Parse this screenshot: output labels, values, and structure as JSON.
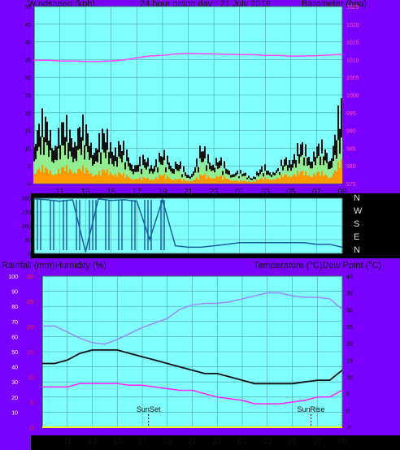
{
  "header": {
    "left_label": "Windspeed (kph)",
    "center_label": "24 hour graph day : 21 July 2019",
    "right_label": "Barometer (hpa)"
  },
  "middle": {
    "compass": [
      "N",
      "W",
      "S",
      "E",
      "N"
    ]
  },
  "lower_header": {
    "left_label": "Rainfall (mm)",
    "humidity_label": "Humidity (%)",
    "right_label": "Temperature (°C)Dew Point (°C)"
  },
  "annotations": {
    "sunset": "SunSet",
    "sunrise": "SunRise"
  },
  "colors": {
    "frame": "#7a00ff",
    "plot_bg": "#80ffff",
    "wind_gust": "#111111",
    "wind_avg": "#90ee90",
    "wind_low": "#ff9900",
    "pressure": "#ff44ff",
    "direction": "#1a5fa0",
    "humidity": "#9b8aff",
    "temperature": "#111111",
    "dew_point": "#ff22ff",
    "rain": "#ffff00"
  },
  "chart_data": [
    {
      "type": "line",
      "title": "24 hour graph day : 21 July 2019",
      "xlabel": "",
      "ylabel": "Windspeed (kph)",
      "y2label": "Barometer (hpa)",
      "x_ticks": [
        "11",
        "13",
        "15",
        "17",
        "19",
        "21",
        "23",
        "01",
        "03",
        "05",
        "07",
        "09"
      ],
      "ylim": [
        0,
        50
      ],
      "y_ticks": [
        0,
        5,
        10,
        15,
        20,
        25,
        30,
        35,
        40,
        45,
        50
      ],
      "y2lim": [
        975,
        1025
      ],
      "y2_ticks": [
        975,
        980,
        985,
        990,
        995,
        1000,
        1005,
        1010,
        1015,
        1020,
        1025
      ],
      "x_hours": [
        9,
        10,
        11,
        12,
        13,
        14,
        15,
        16,
        17,
        18,
        19,
        20,
        21,
        22,
        23,
        24,
        25,
        26,
        27,
        28,
        29,
        30,
        31,
        32,
        33
      ],
      "series": [
        {
          "name": "Windspeed (kph)",
          "values": [
            23,
            21,
            19,
            22,
            19,
            16,
            18,
            12,
            8,
            9,
            10,
            9,
            3,
            12,
            10,
            6,
            4,
            3,
            6,
            5,
            12,
            13,
            13,
            12,
            28
          ]
        },
        {
          "name": "Avg",
          "values": [
            14,
            13,
            12,
            13,
            12,
            10,
            11,
            8,
            5,
            6,
            7,
            6,
            2,
            8,
            7,
            4,
            3,
            2,
            4,
            4,
            8,
            9,
            9,
            8,
            15
          ]
        },
        {
          "name": "Low",
          "values": [
            6,
            5,
            5,
            6,
            5,
            4,
            5,
            3,
            2,
            2,
            3,
            2,
            1,
            3,
            3,
            2,
            1,
            1,
            2,
            2,
            4,
            4,
            4,
            3,
            8
          ]
        },
        {
          "name": "Barometer (hpa)",
          "values": [
            1009.8,
            1009.8,
            1009.6,
            1009.6,
            1009.5,
            1009.5,
            1009.6,
            1009.9,
            1010.5,
            1011.0,
            1011.2,
            1011.6,
            1011.8,
            1011.7,
            1011.6,
            1011.5,
            1011.4,
            1011.4,
            1011.2,
            1011.2,
            1011.0,
            1011.0,
            1011.1,
            1011.3,
            1011.5
          ]
        }
      ]
    },
    {
      "type": "line",
      "title": "",
      "y_ticks": [
        0,
        90,
        180,
        270,
        360
      ],
      "ylim": [
        0,
        360
      ],
      "x_hours": [
        9,
        10,
        11,
        12,
        13,
        14,
        15,
        16,
        17,
        18,
        19,
        20,
        21,
        22,
        23,
        24,
        25,
        26,
        27,
        28,
        29,
        30,
        31,
        32,
        33
      ],
      "series": [
        {
          "name": "Direction",
          "values": [
            355,
            350,
            340,
            350,
            10,
            355,
            345,
            350,
            340,
            90,
            350,
            50,
            40,
            40,
            50,
            60,
            70,
            70,
            70,
            70,
            70,
            70,
            60,
            60,
            40
          ]
        }
      ]
    },
    {
      "type": "line",
      "title": "",
      "ylabel_left": "Rainfall (mm)",
      "ylabel_left2": "Humidity (%)",
      "ylabel_right": "Temperature (°C)Dew Point (°C)",
      "x_ticks": [
        "11",
        "13",
        "15",
        "17",
        "19",
        "21",
        "23",
        "01",
        "03",
        "05",
        "07",
        "09"
      ],
      "humidity_lim": [
        0,
        100
      ],
      "humidity_ticks": [
        10,
        20,
        30,
        40,
        50,
        60,
        70,
        80,
        90,
        100
      ],
      "rain_lim": [
        0,
        30
      ],
      "rain_ticks": [
        0,
        5,
        10,
        15,
        20,
        25,
        30
      ],
      "temp_lim": [
        -5,
        40
      ],
      "temp_ticks": [
        -5,
        0,
        5,
        10,
        15,
        20,
        25,
        30,
        35,
        40
      ],
      "x_hours": [
        9,
        10,
        11,
        12,
        13,
        14,
        15,
        16,
        17,
        18,
        19,
        20,
        21,
        22,
        23,
        24,
        25,
        26,
        27,
        28,
        29,
        30,
        31,
        32,
        33
      ],
      "series": [
        {
          "name": "Humidity (%)",
          "values": [
            67,
            67,
            63,
            59,
            56,
            55,
            58,
            62,
            66,
            69,
            72,
            78,
            81,
            82,
            82,
            83,
            85,
            87,
            89,
            89,
            87,
            86,
            86,
            85,
            78
          ]
        },
        {
          "name": "Temperature (°C)",
          "values": [
            14,
            14,
            15,
            17,
            18,
            18,
            18,
            17,
            16,
            15,
            14,
            13,
            12,
            11,
            11,
            10,
            9,
            8,
            8,
            8,
            8,
            8.5,
            9,
            9,
            12
          ]
        },
        {
          "name": "Dew Point (°C)",
          "values": [
            7,
            7,
            7,
            8,
            8,
            8,
            8,
            7.5,
            7.5,
            7,
            6.5,
            6,
            6,
            5,
            4,
            3.5,
            3,
            2,
            2,
            2,
            2.5,
            3,
            4,
            4,
            6
          ]
        },
        {
          "name": "Rainfall (mm)",
          "values": [
            0,
            0,
            0,
            0,
            0,
            0,
            0,
            0,
            0,
            0,
            0,
            0,
            0,
            0,
            0,
            0,
            0,
            0,
            0,
            0,
            0,
            0,
            0,
            0,
            0
          ]
        }
      ]
    }
  ]
}
